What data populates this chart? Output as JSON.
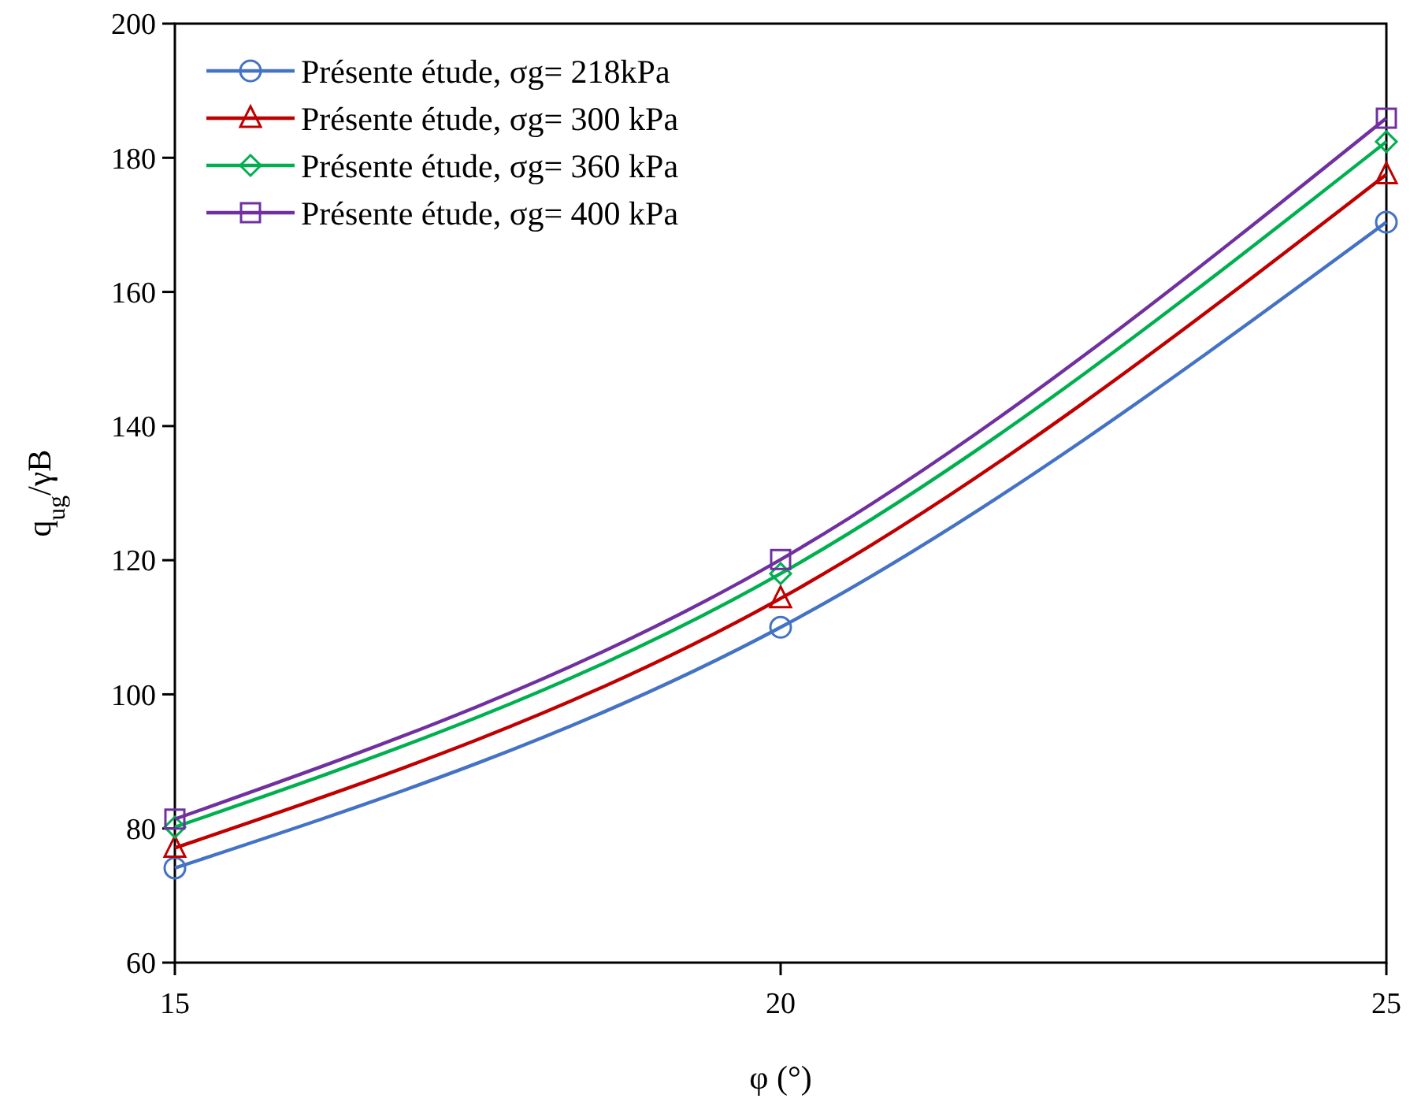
{
  "chart_data": {
    "type": "line",
    "xlabel": "φ (°)",
    "ylabel": "q$_{ug}$/γB",
    "x": [
      15,
      20,
      25
    ],
    "xlim": [
      15,
      25
    ],
    "xticks": [
      15,
      20,
      25
    ],
    "ylim": [
      60,
      200
    ],
    "yticks": [
      60,
      80,
      100,
      120,
      140,
      160,
      180,
      200
    ],
    "grid": false,
    "legend": "top left",
    "line_style": "solid",
    "series": [
      {
        "name": "Présente étude, σg= 218kPa",
        "color": "#4472c4",
        "marker": "circle",
        "values": [
          74.1,
          110,
          170.4
        ]
      },
      {
        "name": "Présente étude, σg= 300 kPa",
        "color": "#c00000",
        "marker": "triangle",
        "values": [
          77.1,
          114.3,
          177.5
        ]
      },
      {
        "name": "Présente étude, σg= 360 kPa",
        "color": "#00b050",
        "marker": "diamond",
        "values": [
          80.2,
          118,
          182.4
        ]
      },
      {
        "name": "Présente étude, σg= 400 kPa",
        "color": "#7030a0",
        "marker": "square",
        "values": [
          81.4,
          120.1,
          185.9
        ]
      }
    ]
  }
}
